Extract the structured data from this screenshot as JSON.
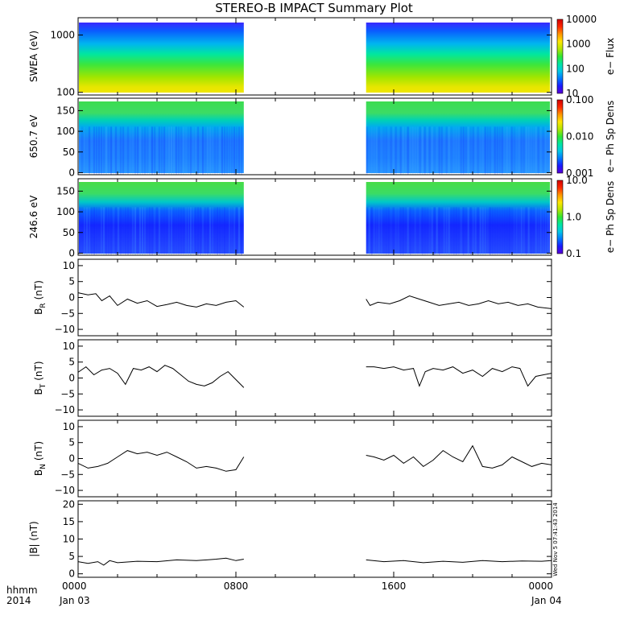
{
  "title": "STEREO-B IMPACT Summary Plot",
  "footer": {
    "time_label": "hhmm",
    "year": "2014",
    "x_ticks": [
      "0000",
      "0800",
      "1600",
      "0000"
    ],
    "date_start": "Jan 03",
    "date_end": "Jan 04",
    "stamp": "Wed Nov  5 07:41:43 2014"
  },
  "colors": {
    "trace": "#000000",
    "frame": "#000000"
  },
  "chart_data": [
    {
      "type": "heatmap",
      "ylabel": "SWEA (eV)",
      "y_scale": "log",
      "ylim": [
        90,
        2000
      ],
      "yticks": [
        "1000",
        "100"
      ],
      "ytick_values": [
        1000,
        100
      ],
      "colorbar": {
        "label": "e− Flux",
        "scale": "log",
        "range": [
          10,
          10000
        ],
        "ticks": [
          "10000",
          "1000",
          "100",
          "10"
        ],
        "tick_values": [
          10000,
          1000,
          100,
          10
        ]
      },
      "data_gap_hours": [
        8.4,
        14.6
      ]
    },
    {
      "type": "heatmap",
      "ylabel": "650.7 eV",
      "y_scale": "linear",
      "ylim": [
        -5,
        180
      ],
      "yticks": [
        "150",
        "100",
        "50",
        "0"
      ],
      "ytick_values": [
        150,
        100,
        50,
        0
      ],
      "colorbar": {
        "label": "e− Ph Sp Dens",
        "scale": "log",
        "range": [
          0.001,
          0.1
        ],
        "ticks": [
          "0.100",
          "0.010",
          "0.001"
        ],
        "tick_values": [
          0.1,
          0.01,
          0.001
        ]
      },
      "data_gap_hours": [
        8.4,
        14.6
      ]
    },
    {
      "type": "heatmap",
      "ylabel": "246.6 eV",
      "y_scale": "linear",
      "ylim": [
        -5,
        180
      ],
      "yticks": [
        "150",
        "100",
        "50",
        "0"
      ],
      "ytick_values": [
        150,
        100,
        50,
        0
      ],
      "colorbar": {
        "label": "e− Ph Sp Dens",
        "scale": "log",
        "range": [
          0.1,
          10
        ],
        "ticks": [
          "10.0",
          "1.0",
          "0.1"
        ],
        "tick_values": [
          10,
          1,
          0.1
        ]
      },
      "data_gap_hours": [
        8.4,
        14.6
      ]
    },
    {
      "type": "line",
      "ylabel": "B",
      "ylabel_sub": "R",
      "ylabel_unit": "(nT)",
      "ylim": [
        -12,
        12
      ],
      "yticks": [
        "10",
        "5",
        "0",
        "−5",
        "−10"
      ],
      "ytick_values": [
        10,
        5,
        0,
        -5,
        -10
      ],
      "xlim": [
        0,
        24
      ],
      "x": [
        0,
        0.5,
        0.9,
        1.2,
        1.6,
        2.0,
        2.5,
        3.0,
        3.5,
        4.0,
        4.5,
        5.0,
        5.5,
        6.0,
        6.5,
        7.0,
        7.5,
        8.0,
        8.4,
        null,
        14.6,
        14.8,
        15.2,
        15.8,
        16.3,
        16.8,
        17.3,
        17.8,
        18.3,
        18.8,
        19.3,
        19.8,
        20.3,
        20.8,
        21.3,
        21.8,
        22.3,
        22.8,
        23.3,
        24
      ],
      "y": [
        1.5,
        0.8,
        1.2,
        -1,
        0.5,
        -2.5,
        -0.5,
        -1.8,
        -1.0,
        -2.8,
        -2.2,
        -1.5,
        -2.5,
        -3.0,
        -2.0,
        -2.5,
        -1.5,
        -1.0,
        -3.0,
        null,
        -0.5,
        -2.5,
        -1.5,
        -2.0,
        -1.0,
        0.5,
        -0.5,
        -1.5,
        -2.5,
        -2.0,
        -1.5,
        -2.5,
        -2.0,
        -1.0,
        -2.0,
        -1.5,
        -2.5,
        -2.0,
        -3.0,
        -3.5
      ]
    },
    {
      "type": "line",
      "ylabel": "B",
      "ylabel_sub": "T",
      "ylabel_unit": "(nT)",
      "ylim": [
        -12,
        12
      ],
      "yticks": [
        "10",
        "5",
        "0",
        "−5",
        "−10"
      ],
      "ytick_values": [
        10,
        5,
        0,
        -5,
        -10
      ],
      "xlim": [
        0,
        24
      ],
      "x": [
        0,
        0.4,
        0.8,
        1.2,
        1.6,
        2.0,
        2.4,
        2.8,
        3.2,
        3.6,
        4.0,
        4.4,
        4.8,
        5.2,
        5.6,
        6.0,
        6.4,
        6.8,
        7.2,
        7.6,
        8.0,
        8.4,
        null,
        14.6,
        15.0,
        15.5,
        16.0,
        16.5,
        17.0,
        17.3,
        17.6,
        18.0,
        18.5,
        19.0,
        19.5,
        20.0,
        20.5,
        21.0,
        21.5,
        22.0,
        22.4,
        22.8,
        23.2,
        23.6,
        24
      ],
      "y": [
        1.8,
        3.5,
        1.0,
        2.5,
        3.0,
        1.5,
        -2.0,
        3.0,
        2.5,
        3.5,
        2.0,
        4.0,
        3.0,
        1.0,
        -1.0,
        -2.0,
        -2.5,
        -1.5,
        0.5,
        2.0,
        -0.5,
        -3.0,
        null,
        3.5,
        3.5,
        3.0,
        3.5,
        2.5,
        3.0,
        -2.5,
        2.0,
        3.0,
        2.5,
        3.5,
        1.5,
        2.5,
        0.5,
        3.0,
        2.0,
        3.5,
        3.0,
        -2.5,
        0.5,
        1.0,
        1.5
      ]
    },
    {
      "type": "line",
      "ylabel": "B",
      "ylabel_sub": "N",
      "ylabel_unit": "(nT)",
      "ylim": [
        -12,
        12
      ],
      "yticks": [
        "10",
        "5",
        "0",
        "−5",
        "−10"
      ],
      "ytick_values": [
        10,
        5,
        0,
        -5,
        -10
      ],
      "xlim": [
        0,
        24
      ],
      "x": [
        0,
        0.5,
        1.0,
        1.5,
        2.0,
        2.5,
        3.0,
        3.5,
        4.0,
        4.5,
        5.0,
        5.5,
        6.0,
        6.5,
        7.0,
        7.5,
        8.0,
        8.4,
        null,
        14.6,
        15.0,
        15.5,
        16.0,
        16.5,
        17.0,
        17.5,
        18.0,
        18.5,
        19.0,
        19.5,
        20.0,
        20.5,
        21.0,
        21.5,
        22.0,
        22.5,
        23.0,
        23.5,
        24
      ],
      "y": [
        -1.5,
        -3.0,
        -2.5,
        -1.5,
        0.5,
        2.5,
        1.5,
        2.0,
        1.0,
        2.0,
        0.5,
        -1.0,
        -3.0,
        -2.5,
        -3.0,
        -4.0,
        -3.5,
        0.5,
        null,
        1.0,
        0.5,
        -0.5,
        1.0,
        -1.5,
        0.5,
        -2.5,
        -0.5,
        2.5,
        0.5,
        -1.0,
        4.0,
        -2.5,
        -3.0,
        -2.0,
        0.5,
        -1.0,
        -2.5,
        -1.5,
        -2.0
      ]
    },
    {
      "type": "line",
      "ylabel": "|B| (nT)",
      "ylim": [
        -1,
        21
      ],
      "yticks": [
        "20",
        "15",
        "10",
        "5",
        "0"
      ],
      "ytick_values": [
        20,
        15,
        10,
        5,
        0
      ],
      "xlim": [
        0,
        24
      ],
      "x": [
        0,
        0.5,
        1.0,
        1.3,
        1.6,
        2.0,
        3.0,
        4.0,
        5.0,
        6.0,
        7.0,
        7.5,
        8.0,
        8.4,
        null,
        14.6,
        15.5,
        16.5,
        17.5,
        18.5,
        19.5,
        20.5,
        21.5,
        22.5,
        23.5,
        24
      ],
      "y": [
        3.5,
        3.0,
        3.5,
        2.5,
        3.8,
        3.2,
        3.6,
        3.5,
        4.0,
        3.8,
        4.2,
        4.5,
        3.8,
        4.2,
        null,
        4.0,
        3.5,
        3.8,
        3.2,
        3.6,
        3.3,
        3.8,
        3.5,
        3.7,
        3.6,
        3.8
      ]
    }
  ]
}
